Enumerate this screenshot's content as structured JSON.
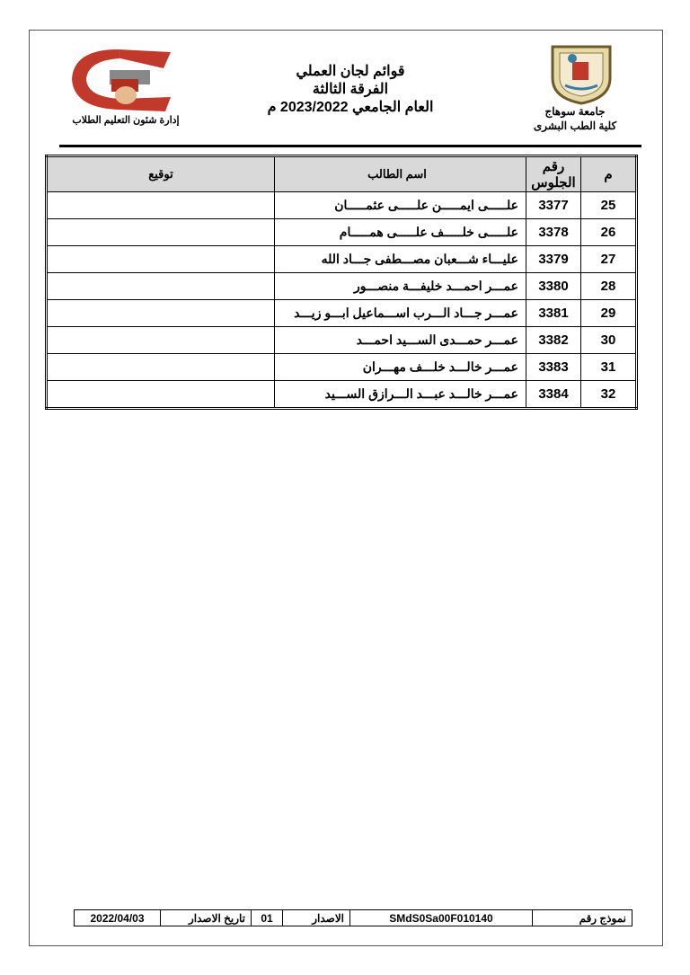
{
  "header": {
    "title_lines": [
      "قوائم لجان العملي",
      "الفرقة الثالثة",
      "العام الجامعي 2023/2022 م"
    ],
    "right_caption": [
      "جامعة سوهاج",
      "كلية الطب البشرى"
    ],
    "left_caption": "إدارة شئون التعليم الطلاب",
    "left_logo_text": "جامعة سوهاج كلية الطب"
  },
  "table": {
    "headers": {
      "m": "م",
      "seat": "رقم الجلوس",
      "name": "اسم الطالب",
      "signature": "توقيع"
    },
    "rows": [
      {
        "m": "25",
        "seat": "3377",
        "name": "علـــــى ايمـــــن علـــــى عثمـــــان",
        "signature": ""
      },
      {
        "m": "26",
        "seat": "3378",
        "name": "علـــــى خلـــــف علـــــى همـــــام",
        "signature": ""
      },
      {
        "m": "27",
        "seat": "3379",
        "name": "عليـــاء شـــعبان مصـــطفى جـــاد الله",
        "signature": ""
      },
      {
        "m": "28",
        "seat": "3380",
        "name": "عمـــر احمـــد خليفـــة منصـــور",
        "signature": ""
      },
      {
        "m": "29",
        "seat": "3381",
        "name": "عمـــر جـــاد الـــرب اســـماعيل ابـــو زيـــد",
        "signature": ""
      },
      {
        "m": "30",
        "seat": "3382",
        "name": "عمـــر حمـــدى الســـيد احمـــد",
        "signature": ""
      },
      {
        "m": "31",
        "seat": "3383",
        "name": "عمـــر خالـــد خلـــف مهـــران",
        "signature": ""
      },
      {
        "m": "32",
        "seat": "3384",
        "name": "عمـــر خالـــد عبـــد الـــرازق الســـيد",
        "signature": ""
      }
    ]
  },
  "footer": {
    "form_label": "نموذج رقم",
    "form_code": "SMdS0Sa00F010140",
    "edition_label": "الاصدار",
    "edition": "01",
    "issue_date_label": "تاريخ الاصدار",
    "issue_date": "2022/04/03"
  }
}
